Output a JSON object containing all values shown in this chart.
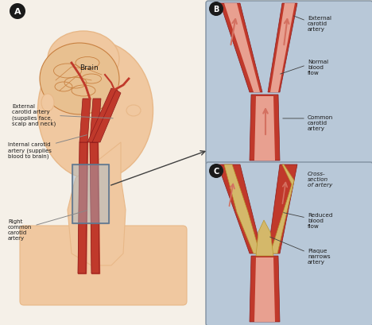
{
  "bg_color": "#f5f0e8",
  "panel_A_label": "A",
  "panel_B_label": "B",
  "panel_C_label": "C",
  "label_brain": "Brain",
  "label_external_carotid": "External\ncarotid artery\n(supplies face,\nscalp and neck)",
  "label_internal_carotid": "Internal carotid\nartery (supplies\nblood to brain)",
  "label_right_common": "Right\ncommon\ncarotid\nartery",
  "label_B_external": "External\ncarotid\nartery",
  "label_B_normal_flow": "Normal\nblood\nflow",
  "label_B_common": "Common\ncarotid\nartery",
  "label_C_cross": "Cross-\nsection\nof artery",
  "label_C_reduced": "Reduced\nblood\nflow",
  "label_C_plaque": "Plaque\nnarrows\nartery",
  "artery_red": "#c0392b",
  "artery_light_red": "#e8a090",
  "artery_dark_red": "#8b1a1a",
  "plaque_color": "#d4b86a",
  "plaque_dark": "#b8962e",
  "panel_bg": "#b8c8d8",
  "panel_bg_light": "#c8d8e8",
  "skin_color": "#f5d5b0",
  "skin_dark": "#e8b888",
  "brain_color": "#e8c090",
  "brain_outline": "#c88040",
  "arrow_color": "#d47060",
  "face_color": "#f0c8a0",
  "neck_color": "#e8b888",
  "text_color": "#1a1a1a",
  "gray_color": "#888888",
  "box_color": "#a0b8cc"
}
